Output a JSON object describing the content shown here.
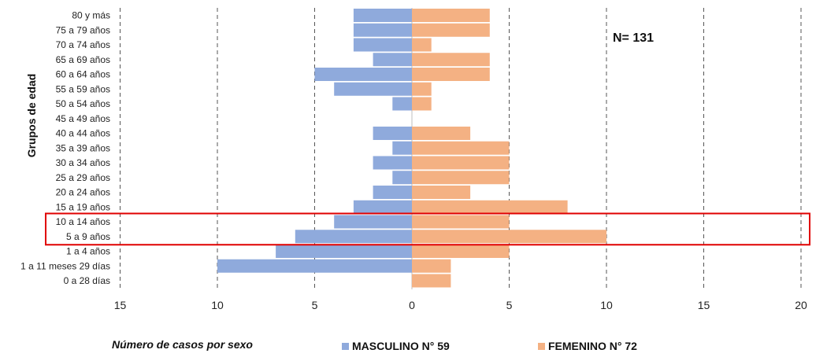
{
  "chart_data": {
    "type": "bar",
    "orientation": "horizontal",
    "categories": [
      "80 y más",
      "75 a 79 años",
      "70 a 74 años",
      "65 a 69 años",
      "60 a 64 años",
      "55 a 59 años",
      "50 a 54 años",
      "45 a 49 años",
      "40 a 44 años",
      "35 a 39 años",
      "30 a 34 años",
      "25 a 29 años",
      "20 a 24 años",
      "15 a 19 años",
      "10 a 14 años",
      "5 a 9 años",
      "1 a 4 años",
      "1 a 11 meses 29 días",
      "0 a 28 días"
    ],
    "series": [
      {
        "name": "MASCULINO N° 59",
        "color": "#8faadc",
        "values": [
          3,
          3,
          3,
          2,
          5,
          4,
          1,
          0,
          2,
          1,
          2,
          1,
          2,
          3,
          4,
          6,
          7,
          10,
          0
        ]
      },
      {
        "name": "FEMENINO N° 72",
        "color": "#f4b183",
        "values": [
          4,
          4,
          1,
          4,
          4,
          1,
          1,
          0,
          3,
          5,
          5,
          5,
          3,
          8,
          5,
          10,
          5,
          2,
          2
        ]
      }
    ],
    "xlim": [
      -15,
      20
    ],
    "xticks": [
      "15",
      "10",
      "5",
      "0",
      "5",
      "10",
      "15",
      "20"
    ],
    "xlabel": "Número de casos por sexo",
    "ylabel": "Grupos de edad",
    "annotation": "N= 131",
    "highlight_categories": [
      "10 a 14 años",
      "5 a 9 años"
    ],
    "highlight_color": "#e00000",
    "grid": "vertical dashed",
    "legend_position": "bottom"
  }
}
